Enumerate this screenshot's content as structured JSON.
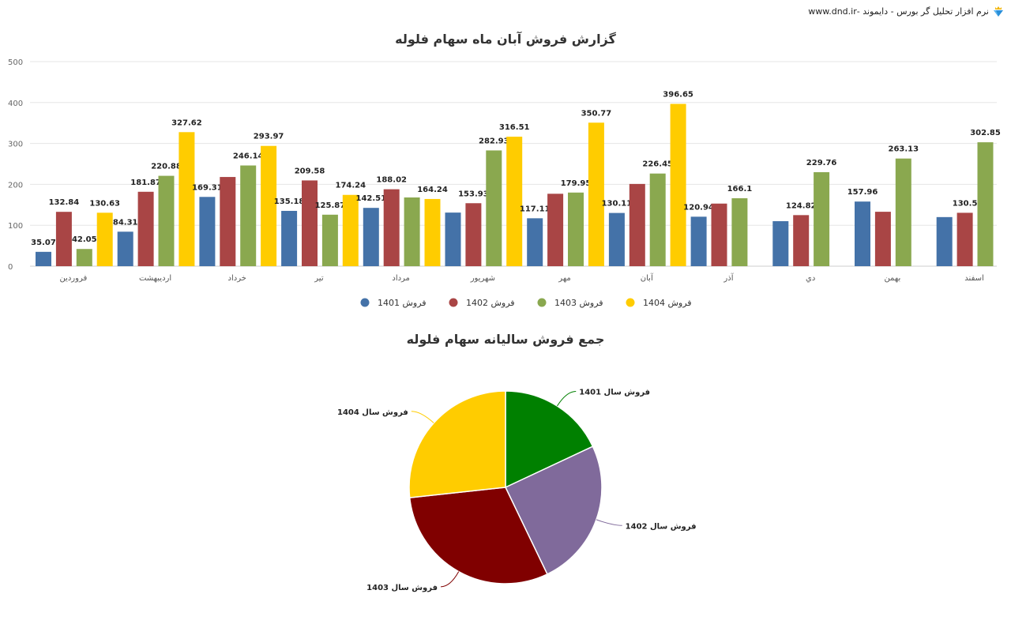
{
  "header": {
    "text": "نرم افزار تحلیل گر بورس - دایموند -www.dnd.ir",
    "logo": "diamond-crown-icon"
  },
  "chart_data": [
    {
      "type": "bar",
      "title": "گزارش فروش آبان ماه سهام فلوله",
      "categories": [
        "فروردین",
        "اردیبهشت",
        "خرداد",
        "تیر",
        "مرداد",
        "شهریور",
        "مهر",
        "آبان",
        "آذر",
        "دي",
        "بهمن",
        "اسفند"
      ],
      "ylim": [
        0,
        500
      ],
      "yticks": [
        0,
        100,
        200,
        300,
        400,
        500
      ],
      "grid": true,
      "legend": "bottom",
      "series": [
        {
          "name": "فروش 1401",
          "color": "#4472a8",
          "values": [
            35.07,
            84.31,
            169.31,
            135.18,
            142.51,
            131,
            117.11,
            130.11,
            120.94,
            110,
            157.96,
            120
          ],
          "labels": [
            "35.07",
            "84.31",
            "169.31",
            "135.18",
            "142.51",
            null,
            "117.11",
            "130.11",
            "120.94",
            null,
            "157.96",
            null
          ]
        },
        {
          "name": "فروش 1402",
          "color": "#a94545",
          "values": [
            132.84,
            181.87,
            218,
            209.58,
            188.02,
            153.93,
            177,
            201,
            153,
            124.82,
            133,
            130.5
          ],
          "labels": [
            "132.84",
            "181.87",
            null,
            "209.58",
            "188.02",
            "153.93",
            null,
            null,
            null,
            "124.82",
            null,
            "130.5"
          ]
        },
        {
          "name": "فروش 1403",
          "color": "#8aa84f",
          "values": [
            42.05,
            220.88,
            246.14,
            125.87,
            168,
            282.93,
            179.95,
            226.45,
            166.1,
            229.76,
            263.13,
            302.85
          ],
          "labels": [
            "42.05",
            "220.88",
            "246.14",
            "125.87",
            null,
            "282.93",
            "179.95",
            "226.45",
            "166.1",
            "229.76",
            "263.13",
            "302.85"
          ]
        },
        {
          "name": "فروش 1404",
          "color": "#ffcc00",
          "values": [
            130.63,
            327.62,
            293.97,
            174.24,
            164.24,
            316.51,
            350.77,
            396.65,
            null,
            null,
            null,
            null
          ],
          "labels": [
            "130.63",
            "327.62",
            "293.97",
            "174.24",
            "164.24",
            "316.51",
            "350.77",
            "396.65",
            null,
            null,
            null,
            null
          ]
        }
      ]
    },
    {
      "type": "pie",
      "title": "جمع فروش سالیانه سهام فلوله",
      "slices": [
        {
          "label": "فروش سال 1401",
          "value": 1453.5,
          "color": "#008000"
        },
        {
          "label": "فروش سال 1402",
          "value": 2003.6,
          "color": "#806a9b"
        },
        {
          "label": "فروش سال 1403",
          "value": 2454.1,
          "color": "#800000"
        },
        {
          "label": "فروش سال 1404",
          "value": 2154.6,
          "color": "#ffcc00"
        }
      ]
    }
  ]
}
